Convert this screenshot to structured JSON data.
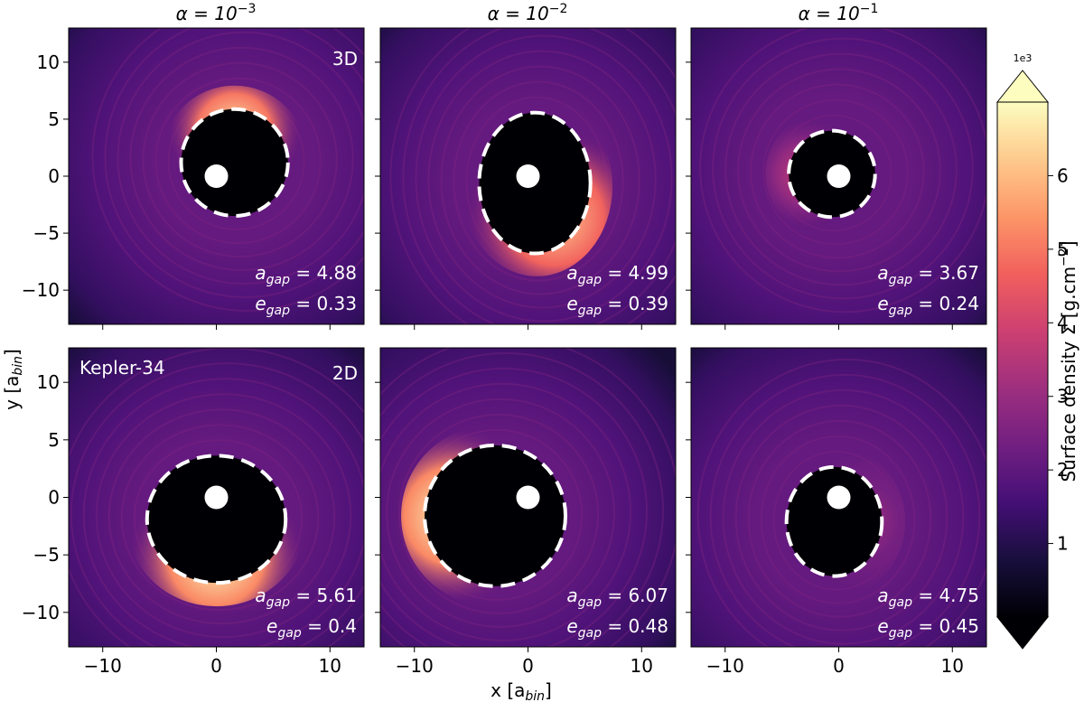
{
  "figure": {
    "column_titles": [
      {
        "base": "α = 10",
        "exp": "−3"
      },
      {
        "base": "α = 10",
        "exp": "−2"
      },
      {
        "base": "α = 10",
        "exp": "−1"
      }
    ],
    "xlabel": {
      "main": "x [a",
      "sub": "bin",
      "close": "]"
    },
    "ylabel": {
      "main": "y [a",
      "sub": "bin",
      "close": "]"
    },
    "row_labels": [
      "3D",
      "2D"
    ],
    "corner_label": "Kepler-34"
  },
  "colorbar": {
    "label_main": "Surface density Σ [g.cm",
    "label_exp": "−2",
    "label_close": "]",
    "multiplier": "1e3",
    "ticks": [
      1,
      2,
      3,
      4,
      5,
      6
    ],
    "range": [
      0,
      7
    ],
    "colormap": "magma",
    "stops": [
      "#000004",
      "#180f3d",
      "#440f76",
      "#721f81",
      "#9e2f7f",
      "#cd4071",
      "#f1605d",
      "#fd9668",
      "#feca8d",
      "#fcfdbf"
    ]
  },
  "chart_data": [
    {
      "type": "heatmap",
      "title": "α = 10^-3",
      "row": "3D",
      "xlim": [
        -13,
        13
      ],
      "ylim": [
        -13,
        13
      ],
      "xticks": [
        -10,
        0,
        10
      ],
      "yticks": [
        -10,
        -5,
        0,
        5,
        10
      ],
      "a_gap_label": "a",
      "a_gap_sub": "gap",
      "a_gap": "= 4.88",
      "e_gap_label": "e",
      "e_gap_sub": "gap",
      "e_gap": "= 0.33",
      "gap_center": [
        1.6,
        1.2
      ],
      "gap_rx": 4.7,
      "gap_ry": 4.7,
      "star_center": [
        0,
        0
      ],
      "bright_side": "top",
      "peak_level": 0.95
    },
    {
      "type": "heatmap",
      "title": "α = 10^-2",
      "row": "3D",
      "xlim": [
        -13,
        13
      ],
      "ylim": [
        -13,
        13
      ],
      "xticks": [
        -10,
        0,
        10
      ],
      "yticks": [
        -10,
        -5,
        0,
        5,
        10
      ],
      "a_gap_label": "a",
      "a_gap_sub": "gap",
      "a_gap": "= 4.99",
      "e_gap_label": "e",
      "e_gap_sub": "gap",
      "e_gap": "= 0.39",
      "gap_center": [
        0.6,
        -0.6
      ],
      "gap_rx": 4.9,
      "gap_ry": 6.2,
      "star_center": [
        0,
        0
      ],
      "bright_side": "bottom-right",
      "peak_level": 0.9
    },
    {
      "type": "heatmap",
      "title": "α = 10^-1",
      "row": "3D",
      "xlim": [
        -13,
        13
      ],
      "ylim": [
        -13,
        13
      ],
      "xticks": [
        -10,
        0,
        10
      ],
      "yticks": [
        -10,
        -5,
        0,
        5,
        10
      ],
      "a_gap_label": "a",
      "a_gap_sub": "gap",
      "a_gap": "= 3.67",
      "e_gap_label": "e",
      "e_gap_sub": "gap",
      "e_gap": "= 0.24",
      "gap_center": [
        -0.6,
        0.2
      ],
      "gap_rx": 3.8,
      "gap_ry": 3.8,
      "star_center": [
        0,
        0
      ],
      "bright_side": "left",
      "peak_level": 0.55
    },
    {
      "type": "heatmap",
      "title": "α = 10^-3",
      "row": "2D",
      "xlim": [
        -13,
        13
      ],
      "ylim": [
        -13,
        13
      ],
      "xticks": [
        -10,
        0,
        10
      ],
      "yticks": [
        -10,
        -5,
        0,
        5,
        10
      ],
      "a_gap_label": "a",
      "a_gap_sub": "gap",
      "a_gap": "= 5.61",
      "e_gap_label": "e",
      "e_gap_sub": "gap",
      "e_gap": "= 0.4",
      "gap_center": [
        0,
        -1.9
      ],
      "gap_rx": 6.1,
      "gap_ry": 5.6,
      "star_center": [
        0,
        0
      ],
      "bright_side": "bottom",
      "peak_level": 1.0
    },
    {
      "type": "heatmap",
      "title": "α = 10^-2",
      "row": "2D",
      "xlim": [
        -13,
        13
      ],
      "ylim": [
        -13,
        13
      ],
      "xticks": [
        -10,
        0,
        10
      ],
      "yticks": [
        -10,
        -5,
        0,
        5,
        10
      ],
      "a_gap_label": "a",
      "a_gap_sub": "gap",
      "a_gap": "= 6.07",
      "e_gap_label": "e",
      "e_gap_sub": "gap",
      "e_gap": "= 0.48",
      "gap_center": [
        -2.9,
        -1.6
      ],
      "gap_rx": 6.2,
      "gap_ry": 6.2,
      "star_center": [
        0,
        0
      ],
      "bright_side": "left",
      "peak_level": 1.0
    },
    {
      "type": "heatmap",
      "title": "α = 10^-1",
      "row": "2D",
      "xlim": [
        -13,
        13
      ],
      "ylim": [
        -13,
        13
      ],
      "xticks": [
        -10,
        0,
        10
      ],
      "yticks": [
        -10,
        -5,
        0,
        5,
        10
      ],
      "a_gap_label": "a",
      "a_gap_sub": "gap",
      "a_gap": "= 4.75",
      "e_gap_label": "e",
      "e_gap_sub": "gap",
      "e_gap": "= 0.45",
      "gap_center": [
        -0.4,
        -2.1
      ],
      "gap_rx": 4.2,
      "gap_ry": 4.8,
      "star_center": [
        0,
        0
      ],
      "bright_side": "right",
      "peak_level": 0.45
    }
  ]
}
